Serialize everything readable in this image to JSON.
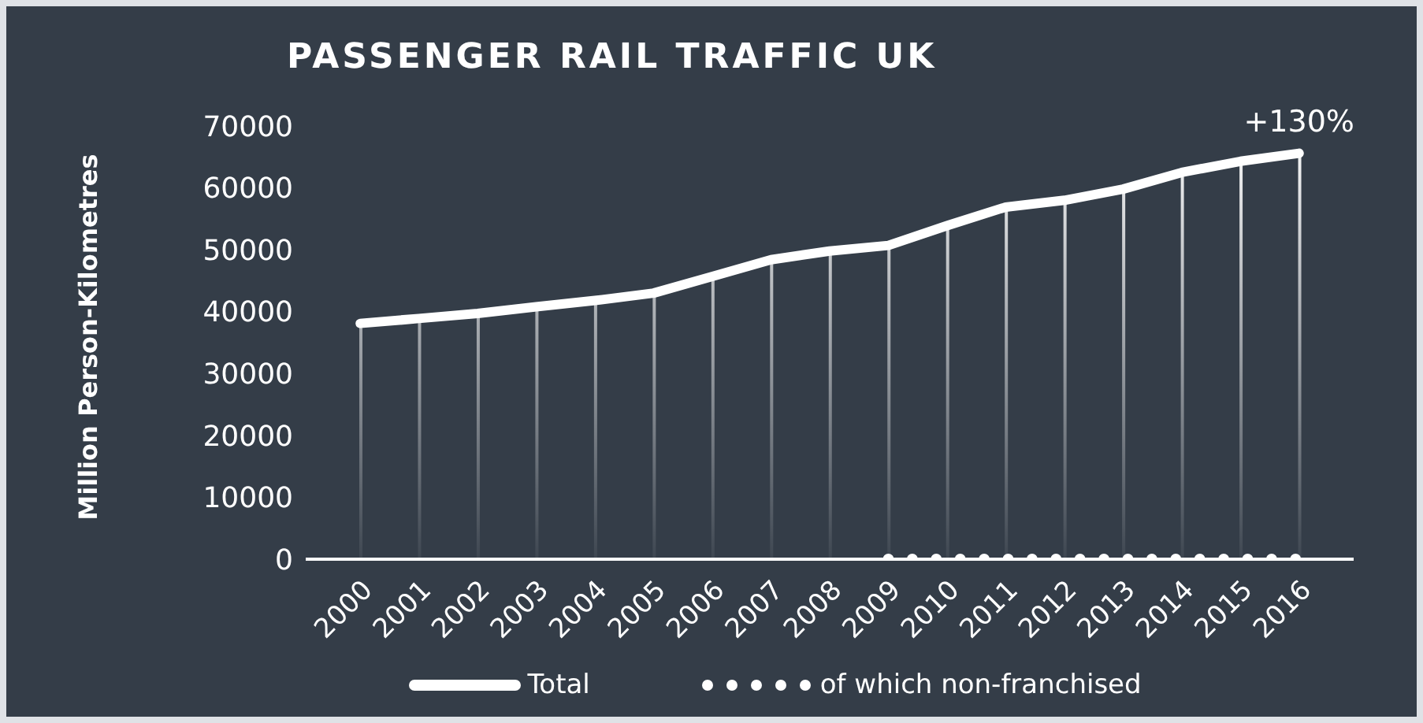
{
  "chart_data": {
    "type": "line",
    "title": "PASSENGER RAIL TRAFFIC UK",
    "ylabel": "Million Person-Kilometres",
    "categories": [
      "2000",
      "2001",
      "2002",
      "2003",
      "2004",
      "2005",
      "2006",
      "2007",
      "2008",
      "2009",
      "2010",
      "2011",
      "2012",
      "2013",
      "2014",
      "2015",
      "2016"
    ],
    "series": [
      {
        "name": "Total",
        "color": "#ffffff",
        "line_style": "solid",
        "values": [
          38100,
          38900,
          39700,
          40800,
          41800,
          43000,
          45700,
          48400,
          49800,
          50700,
          53900,
          56900,
          58000,
          59800,
          62500,
          64300,
          65600
        ]
      },
      {
        "type": "bar",
        "color": "#ffffff",
        "values": [
          38100,
          38900,
          39700,
          40800,
          41800,
          43000,
          45700,
          48400,
          49800,
          50700,
          53900,
          56900,
          58000,
          59800,
          62500,
          64300,
          65600
        ]
      },
      {
        "name": "of which non-franchised",
        "color": "#ffffff",
        "line_style": "dotted",
        "values": [
          null,
          null,
          null,
          null,
          null,
          null,
          null,
          null,
          null,
          0,
          0,
          0,
          0,
          0,
          0,
          0,
          0
        ]
      }
    ],
    "ylim": [
      0,
      70000
    ],
    "yticks": [
      0,
      10000,
      20000,
      30000,
      40000,
      50000,
      60000,
      70000
    ],
    "grid": false,
    "legend": "bottom",
    "marker": "none",
    "annotations": [
      {
        "text": "+130%",
        "x": "2016",
        "y": 65600
      }
    ]
  }
}
